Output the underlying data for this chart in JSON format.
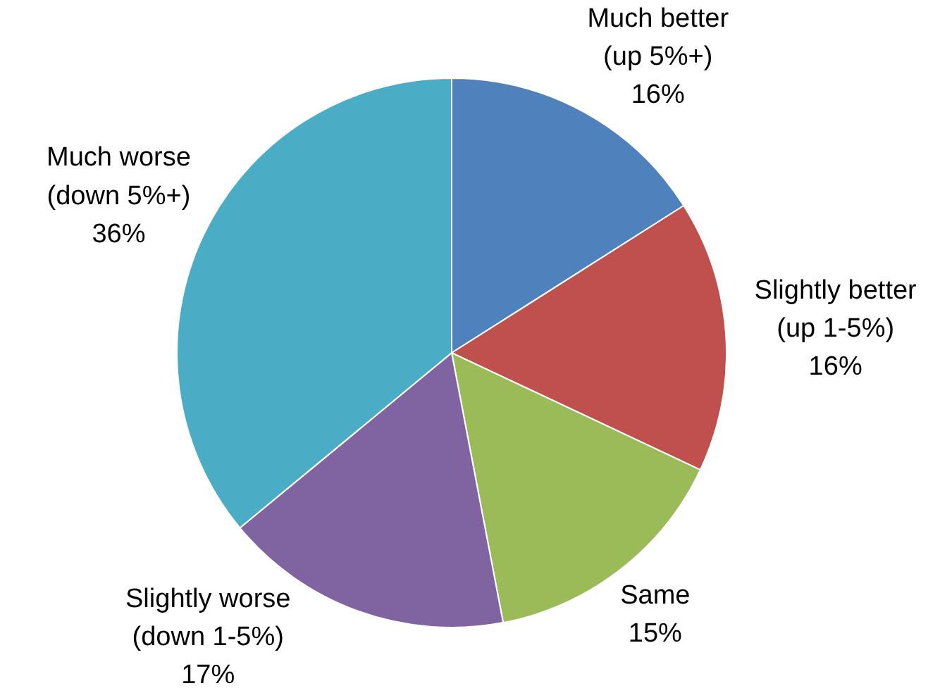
{
  "chart_data": {
    "type": "pie",
    "categories": [
      "Much better (up 5%+)",
      "Slightly better (up 1-5%)",
      "Same",
      "Slightly worse (down 1-5%)",
      "Much worse (down 5%+)"
    ],
    "values": [
      16,
      16,
      15,
      17,
      36
    ],
    "value_labels": [
      "16%",
      "16%",
      "15%",
      "17%",
      "36%"
    ],
    "colors": [
      "#4f81bd",
      "#c0504d",
      "#9bbb59",
      "#8064a2",
      "#4bacc6"
    ]
  }
}
